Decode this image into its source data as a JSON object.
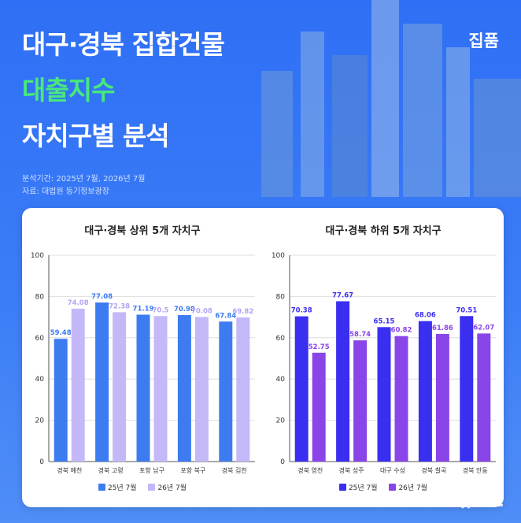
{
  "header": {
    "title_line1": "대구·경북 집합건물",
    "title_line2": "대출지수",
    "title_line3": "자치구별 분석",
    "brand": "집품",
    "meta_period": "분석기간: 2025년 7월, 2026년 7월",
    "meta_source": "자료: 대법원 등기정보광장",
    "watermark": "뉴스1"
  },
  "colors": {
    "background": "#3b7cf7",
    "accent_title": "#49e87c",
    "left_2025": "#3d7cf0",
    "left_2026": "#c4b8f8",
    "right_2025": "#3a2ef0",
    "right_2026": "#8a45e8"
  },
  "chart_data": [
    {
      "type": "bar",
      "title": "대구·경북 상위 5개 자치구",
      "categories": [
        "경북 예천",
        "경북 고령",
        "포항 남구",
        "포항 북구",
        "경북 김천"
      ],
      "series": [
        {
          "name": "25년 7월",
          "values": [
            59.48,
            77.08,
            71.19,
            70.98,
            67.84
          ]
        },
        {
          "name": "26년 7월",
          "values": [
            74.08,
            72.38,
            70.5,
            70.08,
            69.82
          ]
        }
      ],
      "ylim": [
        0,
        100
      ],
      "yticks": [
        "0",
        "20",
        "40",
        "60",
        "80",
        "100"
      ],
      "value_labels": [
        [
          "59.48",
          "77.08",
          "71.19",
          "70.98",
          "67.84"
        ],
        [
          "74.08",
          "72.38",
          "70.5",
          "70.08",
          "69.82"
        ]
      ],
      "grid": true,
      "legend": "bottom"
    },
    {
      "type": "bar",
      "title": "대구·경북 하위 5개 자치구",
      "categories": [
        "경북 영천",
        "경북 성주",
        "대구 수성",
        "경북 칠곡",
        "경북 안동"
      ],
      "series": [
        {
          "name": "25년 7월",
          "values": [
            70.38,
            77.67,
            65.15,
            68.06,
            70.51
          ]
        },
        {
          "name": "26년 7월",
          "values": [
            52.75,
            58.74,
            60.82,
            61.86,
            62.07
          ]
        }
      ],
      "ylim": [
        0,
        100
      ],
      "yticks": [
        "0",
        "20",
        "40",
        "60",
        "80",
        "100"
      ],
      "value_labels": [
        [
          "70.38",
          "77.67",
          "65.15",
          "68.06",
          "70.51"
        ],
        [
          "52.75",
          "58.74",
          "60.82",
          "61.86",
          "62.07"
        ]
      ],
      "grid": true,
      "legend": "bottom"
    }
  ]
}
